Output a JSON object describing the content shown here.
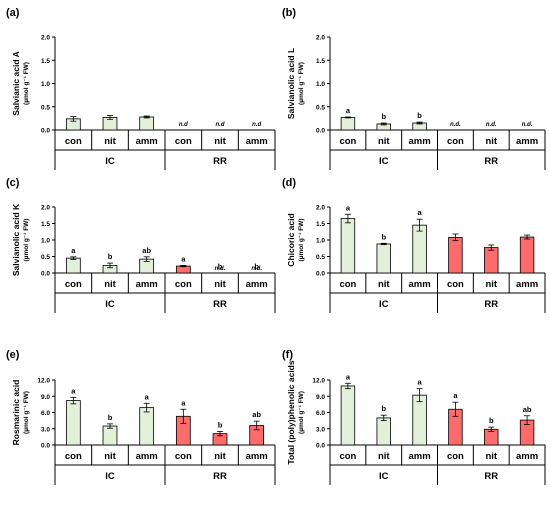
{
  "chart_data": [
    {
      "type": "bar",
      "panel_label": "(a)",
      "ylabel_lines": [
        "Salvianic acid A",
        "(µmol g⁻¹ FW)"
      ],
      "ylim": [
        0,
        2.0
      ],
      "yticks": [
        "0.0",
        "0.5",
        "1.0",
        "1.5",
        "2.0"
      ],
      "categories": [
        "con",
        "nit",
        "amm",
        "con",
        "nit",
        "amm"
      ],
      "groups": [
        "IC",
        "RR"
      ],
      "values": [
        0.24,
        0.27,
        0.28,
        null,
        null,
        null
      ],
      "errors": [
        0.05,
        0.04,
        0.02,
        null,
        null,
        null
      ],
      "letters": [
        "",
        "",
        "",
        "n.d",
        "n.d",
        "n.d"
      ]
    },
    {
      "type": "bar",
      "panel_label": "(b)",
      "ylabel_lines": [
        "Salvianolic acid L",
        "(µmol g⁻¹ FW)"
      ],
      "ylim": [
        0,
        2.0
      ],
      "yticks": [
        "0.0",
        "0.5",
        "1.0",
        "1.5",
        "2.0"
      ],
      "categories": [
        "con",
        "nit",
        "amm",
        "con",
        "nit",
        "amm"
      ],
      "groups": [
        "IC",
        "RR"
      ],
      "values": [
        0.27,
        0.13,
        0.15,
        null,
        null,
        null
      ],
      "errors": [
        0.01,
        0.02,
        0.02,
        null,
        null,
        null
      ],
      "letters": [
        "a",
        "b",
        "b",
        "n.d.",
        "n.d.",
        "n.d."
      ]
    },
    {
      "type": "bar",
      "panel_label": "(c)",
      "ylabel_lines": [
        "Salvianolic acid K",
        "(µmol g⁻¹ FW)"
      ],
      "ylim": [
        0,
        2.0
      ],
      "yticks": [
        "0.0",
        "0.5",
        "1.0",
        "1.5",
        "2.0"
      ],
      "categories": [
        "con",
        "nit",
        "amm",
        "con",
        "nit",
        "amm"
      ],
      "groups": [
        "IC",
        "RR"
      ],
      "values": [
        0.45,
        0.23,
        0.42,
        0.21,
        null,
        null
      ],
      "errors": [
        0.04,
        0.07,
        0.07,
        0.02,
        null,
        null
      ],
      "letters": [
        "a",
        "b",
        "ab",
        "a",
        "b",
        "b"
      ],
      "sublabels": [
        "",
        "",
        "",
        "",
        "n.d.",
        "n.d."
      ]
    },
    {
      "type": "bar",
      "panel_label": "(d)",
      "ylabel_lines": [
        "Chicoric acid",
        "(µmol g⁻¹ FW)"
      ],
      "ylim": [
        0,
        2.0
      ],
      "yticks": [
        "0.0",
        "0.5",
        "1.0",
        "1.5",
        "2.0"
      ],
      "categories": [
        "con",
        "nit",
        "amm",
        "con",
        "nit",
        "amm"
      ],
      "groups": [
        "IC",
        "RR"
      ],
      "values": [
        1.65,
        0.88,
        1.45,
        1.08,
        0.77,
        1.09
      ],
      "errors": [
        0.13,
        0.02,
        0.18,
        0.1,
        0.08,
        0.06
      ],
      "letters": [
        "a",
        "b",
        "a",
        "",
        "",
        ""
      ]
    },
    {
      "type": "bar",
      "panel_label": "(e)",
      "ylabel_lines": [
        "Rosmarinic acid",
        "(µmol g⁻¹ FW)"
      ],
      "ylim": [
        0,
        12.0
      ],
      "yticks": [
        "0.0",
        "3.0",
        "6.0",
        "9.0",
        "12.0"
      ],
      "categories": [
        "con",
        "nit",
        "amm",
        "con",
        "nit",
        "amm"
      ],
      "groups": [
        "IC",
        "RR"
      ],
      "values": [
        8.2,
        3.5,
        6.9,
        5.3,
        2.1,
        3.6
      ],
      "errors": [
        0.6,
        0.4,
        0.8,
        1.3,
        0.4,
        0.8
      ],
      "letters": [
        "a",
        "b",
        "a",
        "a",
        "b",
        "ab"
      ]
    },
    {
      "type": "bar",
      "panel_label": "(f)",
      "ylabel_lines": [
        "Total (poly)phenolic acids",
        "(µmol g⁻¹ FW)"
      ],
      "ylim": [
        0,
        12.0
      ],
      "yticks": [
        "0.0",
        "3.0",
        "6.0",
        "9.0",
        "12.0"
      ],
      "categories": [
        "con",
        "nit",
        "amm",
        "con",
        "nit",
        "amm"
      ],
      "groups": [
        "IC",
        "RR"
      ],
      "values": [
        10.9,
        5.0,
        9.2,
        6.6,
        2.9,
        4.6
      ],
      "errors": [
        0.5,
        0.5,
        1.2,
        1.3,
        0.4,
        0.8
      ],
      "letters": [
        "a",
        "b",
        "a",
        "a",
        "b",
        "ab"
      ]
    }
  ],
  "colors": {
    "IC": "#e2f0d9",
    "RR": "#ff6b6b",
    "stroke": "#000000"
  }
}
